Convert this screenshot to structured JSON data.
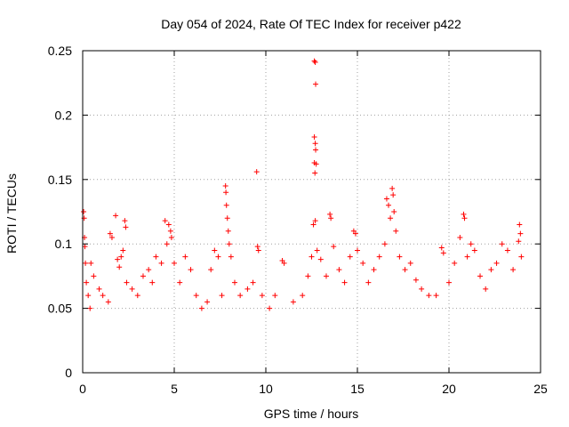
{
  "chart_data": {
    "type": "scatter",
    "title": "Day 054 of 2024, Rate Of TEC Index for receiver p422",
    "xlabel": "GPS time / hours",
    "ylabel": "ROTI / TECUs",
    "xlim": [
      0,
      25
    ],
    "ylim": [
      0,
      0.25
    ],
    "x_ticks": [
      0,
      5,
      10,
      15,
      20,
      25
    ],
    "x_tick_labels": [
      "0",
      "5",
      "10",
      "15",
      "20",
      "25"
    ],
    "y_ticks": [
      0,
      0.05,
      0.1,
      0.15,
      0.2,
      0.25
    ],
    "y_tick_labels": [
      "0",
      "0.05",
      "0.1",
      "0.15",
      "0.2",
      "0.25"
    ],
    "grid": true,
    "marker": "+",
    "color": "#ff0000",
    "series": [
      {
        "name": "ROTI",
        "points": [
          [
            0.05,
            0.125
          ],
          [
            0.08,
            0.12
          ],
          [
            0.1,
            0.105
          ],
          [
            0.12,
            0.098
          ],
          [
            0.15,
            0.085
          ],
          [
            0.2,
            0.07
          ],
          [
            0.3,
            0.06
          ],
          [
            0.4,
            0.05
          ],
          [
            0.45,
            0.085
          ],
          [
            0.6,
            0.075
          ],
          [
            0.9,
            0.065
          ],
          [
            1.1,
            0.06
          ],
          [
            1.4,
            0.055
          ],
          [
            1.5,
            0.108
          ],
          [
            1.6,
            0.105
          ],
          [
            1.8,
            0.122
          ],
          [
            1.9,
            0.088
          ],
          [
            2.0,
            0.082
          ],
          [
            2.1,
            0.09
          ],
          [
            2.2,
            0.095
          ],
          [
            2.3,
            0.118
          ],
          [
            2.35,
            0.113
          ],
          [
            2.4,
            0.07
          ],
          [
            2.7,
            0.065
          ],
          [
            3.0,
            0.06
          ],
          [
            3.3,
            0.075
          ],
          [
            3.6,
            0.08
          ],
          [
            3.8,
            0.07
          ],
          [
            4.0,
            0.09
          ],
          [
            4.3,
            0.085
          ],
          [
            4.5,
            0.118
          ],
          [
            4.6,
            0.1
          ],
          [
            4.7,
            0.115
          ],
          [
            4.8,
            0.11
          ],
          [
            4.85,
            0.105
          ],
          [
            5.0,
            0.085
          ],
          [
            5.3,
            0.07
          ],
          [
            5.6,
            0.09
          ],
          [
            5.9,
            0.08
          ],
          [
            6.2,
            0.06
          ],
          [
            6.5,
            0.05
          ],
          [
            6.8,
            0.055
          ],
          [
            7.0,
            0.08
          ],
          [
            7.2,
            0.095
          ],
          [
            7.4,
            0.09
          ],
          [
            7.6,
            0.06
          ],
          [
            7.8,
            0.145
          ],
          [
            7.82,
            0.14
          ],
          [
            7.85,
            0.13
          ],
          [
            7.9,
            0.12
          ],
          [
            7.95,
            0.11
          ],
          [
            8.0,
            0.1
          ],
          [
            8.1,
            0.09
          ],
          [
            8.3,
            0.07
          ],
          [
            8.6,
            0.06
          ],
          [
            9.0,
            0.065
          ],
          [
            9.3,
            0.07
          ],
          [
            9.5,
            0.156
          ],
          [
            9.55,
            0.098
          ],
          [
            9.6,
            0.095
          ],
          [
            9.8,
            0.06
          ],
          [
            10.2,
            0.05
          ],
          [
            10.5,
            0.06
          ],
          [
            10.9,
            0.087
          ],
          [
            11.0,
            0.085
          ],
          [
            11.5,
            0.055
          ],
          [
            12.0,
            0.06
          ],
          [
            12.3,
            0.075
          ],
          [
            12.5,
            0.09
          ],
          [
            12.6,
            0.115
          ],
          [
            12.65,
            0.242
          ],
          [
            12.7,
            0.241
          ],
          [
            12.72,
            0.224
          ],
          [
            12.65,
            0.183
          ],
          [
            12.7,
            0.178
          ],
          [
            12.72,
            0.173
          ],
          [
            12.65,
            0.163
          ],
          [
            12.75,
            0.162
          ],
          [
            12.68,
            0.155
          ],
          [
            12.7,
            0.118
          ],
          [
            12.8,
            0.095
          ],
          [
            13.0,
            0.088
          ],
          [
            13.3,
            0.075
          ],
          [
            13.5,
            0.123
          ],
          [
            13.55,
            0.12
          ],
          [
            13.7,
            0.098
          ],
          [
            14.0,
            0.08
          ],
          [
            14.3,
            0.07
          ],
          [
            14.6,
            0.09
          ],
          [
            14.8,
            0.11
          ],
          [
            14.9,
            0.108
          ],
          [
            15.0,
            0.095
          ],
          [
            15.3,
            0.085
          ],
          [
            15.6,
            0.07
          ],
          [
            15.9,
            0.08
          ],
          [
            16.2,
            0.09
          ],
          [
            16.5,
            0.1
          ],
          [
            16.6,
            0.135
          ],
          [
            16.7,
            0.13
          ],
          [
            16.8,
            0.12
          ],
          [
            16.9,
            0.143
          ],
          [
            16.95,
            0.138
          ],
          [
            17.0,
            0.125
          ],
          [
            17.1,
            0.11
          ],
          [
            17.3,
            0.09
          ],
          [
            17.6,
            0.08
          ],
          [
            17.9,
            0.085
          ],
          [
            18.2,
            0.072
          ],
          [
            18.5,
            0.065
          ],
          [
            18.9,
            0.06
          ],
          [
            19.3,
            0.06
          ],
          [
            19.6,
            0.097
          ],
          [
            19.7,
            0.093
          ],
          [
            20.0,
            0.07
          ],
          [
            20.3,
            0.085
          ],
          [
            20.6,
            0.105
          ],
          [
            20.8,
            0.123
          ],
          [
            20.85,
            0.12
          ],
          [
            21.0,
            0.09
          ],
          [
            21.2,
            0.1
          ],
          [
            21.4,
            0.095
          ],
          [
            21.7,
            0.075
          ],
          [
            22.0,
            0.065
          ],
          [
            22.3,
            0.08
          ],
          [
            22.6,
            0.085
          ],
          [
            22.9,
            0.1
          ],
          [
            23.2,
            0.095
          ],
          [
            23.5,
            0.08
          ],
          [
            23.8,
            0.102
          ],
          [
            23.85,
            0.115
          ],
          [
            23.9,
            0.108
          ],
          [
            23.95,
            0.09
          ]
        ]
      }
    ]
  }
}
